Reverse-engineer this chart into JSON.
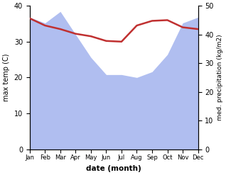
{
  "months": [
    "Jan",
    "Feb",
    "Mar",
    "Apr",
    "May",
    "Jun",
    "Jul",
    "Aug",
    "Sep",
    "Oct",
    "Nov",
    "Dec"
  ],
  "precipitation": [
    46,
    44,
    48,
    40,
    32,
    26,
    26,
    25,
    27,
    33,
    44,
    46
  ],
  "max_temp": [
    36.5,
    34.5,
    33.5,
    32.2,
    31.5,
    30.2,
    30.0,
    34.5,
    35.8,
    36.0,
    34.0,
    33.5
  ],
  "precip_color": "#b0bef0",
  "temp_color": "#c03030",
  "ylabel_left": "max temp (C)",
  "ylabel_right": "med. precipitation (kg/m2)",
  "xlabel": "date (month)",
  "ylim_left": [
    0,
    40
  ],
  "ylim_right": [
    0,
    50
  ],
  "yticks_left": [
    0,
    10,
    20,
    30,
    40
  ],
  "yticks_right": [
    0,
    10,
    20,
    30,
    40,
    50
  ],
  "background_color": "#ffffff"
}
